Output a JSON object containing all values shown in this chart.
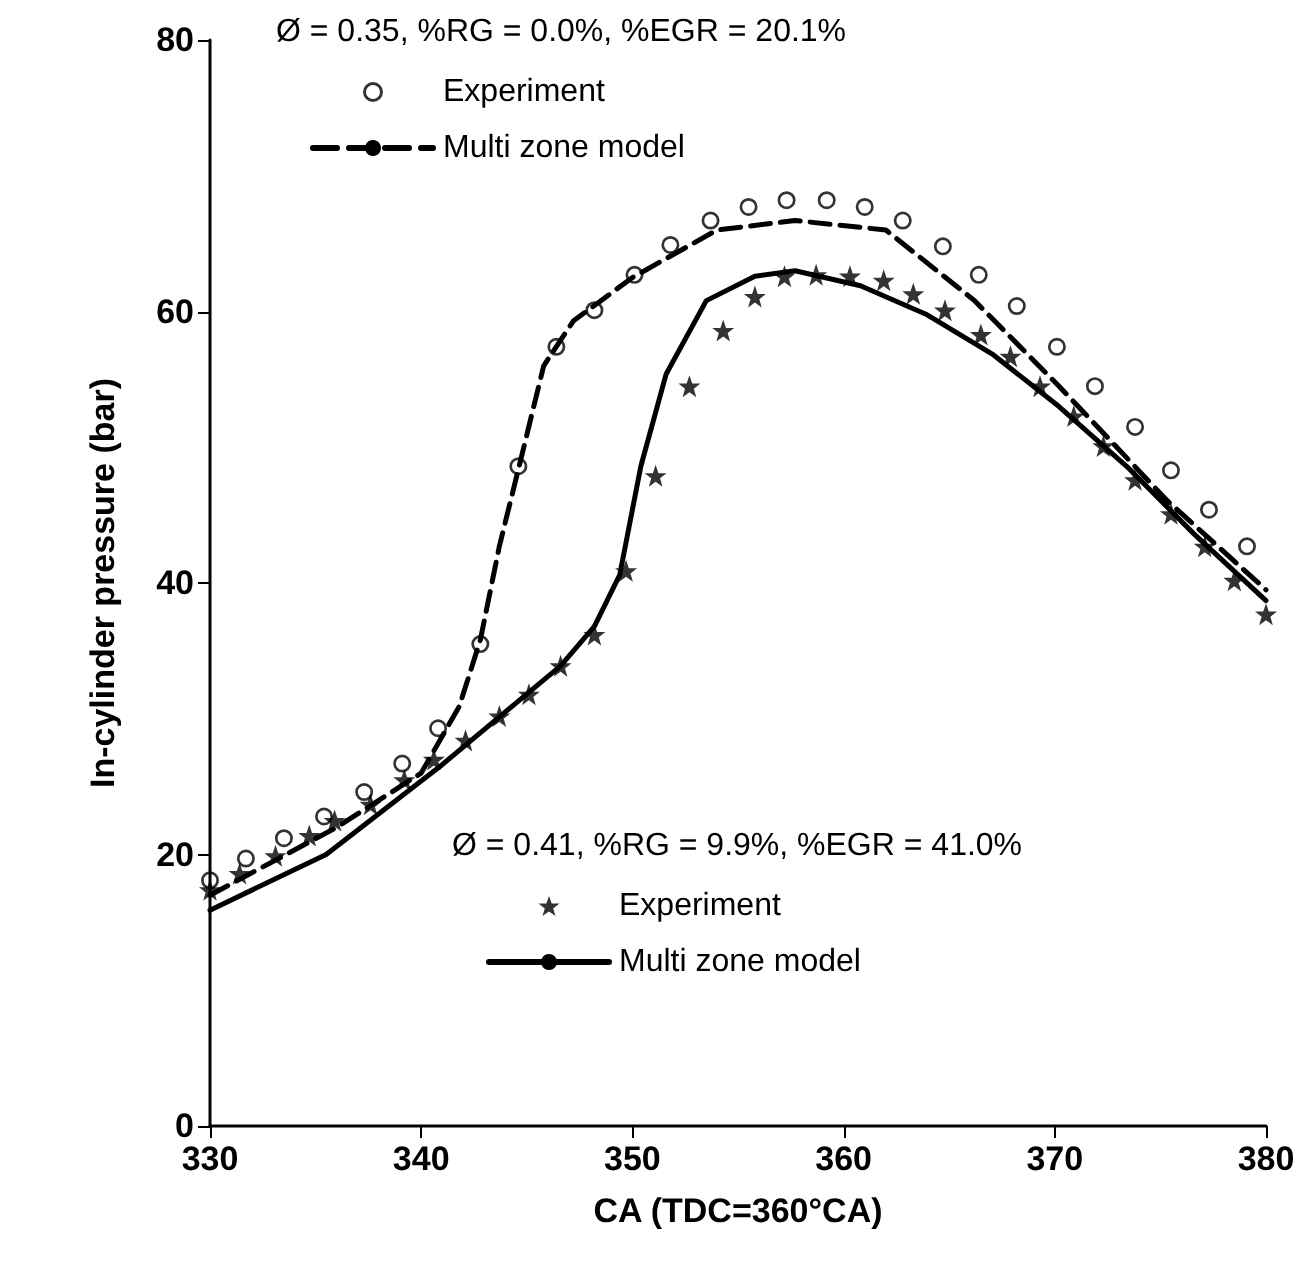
{
  "chart_data": {
    "type": "line",
    "xlabel": "CA (TDC=360°CA)",
    "ylabel": "In-cylinder pressure (bar)",
    "xlim": [
      330,
      380
    ],
    "xticks": [
      330,
      340,
      350,
      360,
      370,
      380
    ],
    "ylim": [
      0,
      80
    ],
    "yticks": [
      0,
      20,
      40,
      60,
      80
    ],
    "grid": false,
    "legend": "top left",
    "annotations": [
      "Ø = 0.35, %RG = 0.0%, %EGR = 20.1%",
      "Ø = 0.41, %RG = 9.9%, %EGR = 41.0%"
    ],
    "series": [
      {
        "name": "Experiment",
        "type": "scatter",
        "marker": "circle",
        "color": "#000000",
        "x": [
          330,
          331.7,
          333.5,
          335.4,
          337.3,
          339.1,
          340.8,
          342.8,
          344.6,
          346.4,
          348.2,
          350.1,
          351.8,
          353.7,
          355.5,
          357.3,
          359.2,
          361,
          362.8,
          364.7,
          366.4,
          368.2,
          370.1,
          371.9,
          373.8,
          375.5,
          377.3,
          379.1
        ],
        "values": [
          18.1,
          19.7,
          21.2,
          22.8,
          24.6,
          26.7,
          29.3,
          35.5,
          48.6,
          57.4,
          60.1,
          62.7,
          64.9,
          66.7,
          67.7,
          68.2,
          68.2,
          67.7,
          66.7,
          64.8,
          62.7,
          60.4,
          57.4,
          54.5,
          51.5,
          48.3,
          45.4,
          42.7
        ]
      },
      {
        "name": "Multi zone model",
        "marker": "none",
        "line_style": "dashed",
        "color": "#000000",
        "x": [
          330,
          336,
          340,
          341.8,
          342.8,
          343.7,
          344.7,
          345.8,
          347.2,
          350,
          354,
          357.7,
          362,
          366.2,
          370.2,
          375.3,
          380
        ],
        "values": [
          17,
          22,
          26,
          30.9,
          35.8,
          42.7,
          49,
          56,
          59.3,
          62.5,
          66,
          66.7,
          66,
          60.8,
          54.5,
          46.1,
          39.5
        ]
      },
      {
        "name": "Experiment",
        "type": "scatter",
        "marker": "star",
        "color": "#000000",
        "x": [
          330,
          331.4,
          333.1,
          334.7,
          335.9,
          337.6,
          339.2,
          340.6,
          342.1,
          343.7,
          345.1,
          346.6,
          348.2,
          349.7,
          351.1,
          352.7,
          354.3,
          355.8,
          357.2,
          358.7,
          360.3,
          361.9,
          363.3,
          364.8,
          366.5,
          367.9,
          369.3,
          370.9,
          372.3,
          373.8,
          375.5,
          377.1,
          378.5,
          380
        ],
        "values": [
          17.4,
          18.6,
          19.9,
          21.4,
          22.5,
          23.7,
          25.5,
          27,
          28.4,
          30.2,
          31.8,
          33.9,
          36.2,
          40.9,
          47.9,
          54.5,
          58.6,
          61.1,
          62.6,
          62.7,
          62.6,
          62.3,
          61.3,
          60.1,
          58.3,
          56.7,
          54.5,
          52.3,
          50.1,
          47.6,
          45.1,
          42.7,
          40.2,
          37.7
        ]
      },
      {
        "name": "Multi zone model",
        "marker": "none",
        "line_style": "solid",
        "color": "#000000",
        "x": [
          330,
          335.5,
          340.9,
          346.6,
          348.2,
          349.4,
          350.4,
          351.6,
          353.5,
          355.8,
          357.7,
          360.8,
          363.9,
          367.1,
          370.2,
          373.4,
          376.6,
          380
        ],
        "values": [
          15.9,
          20,
          26.5,
          33.9,
          36.8,
          40.6,
          48.6,
          55.4,
          60.8,
          62.6,
          63,
          61.9,
          59.8,
          56.8,
          53,
          48.6,
          43.6,
          38.7
        ]
      }
    ]
  }
}
